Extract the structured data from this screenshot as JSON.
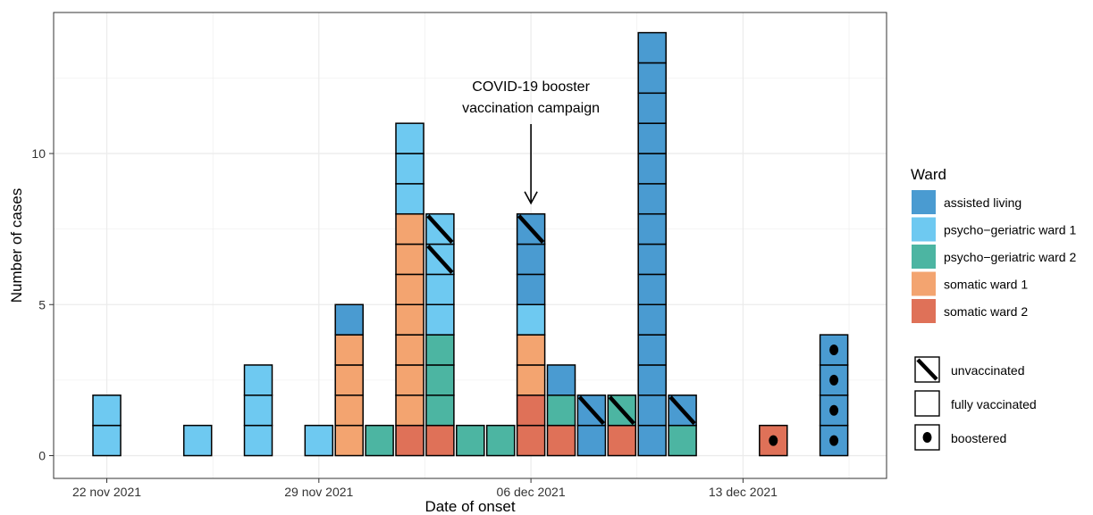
{
  "chart_data": {
    "type": "bar",
    "stacked": true,
    "title": "",
    "xlabel": "Date of onset",
    "ylabel": "Number of cases",
    "x_tick_labels": [
      {
        "date": "2021-11-22",
        "label": "22 nov 2021"
      },
      {
        "date": "2021-11-29",
        "label": "29 nov 2021"
      },
      {
        "date": "2021-12-06",
        "label": "06 dec 2021"
      },
      {
        "date": "2021-12-13",
        "label": "13 dec 2021"
      }
    ],
    "xlim": [
      "2021-11-20",
      "2021-12-18"
    ],
    "y_ticks": [
      0,
      5,
      10
    ],
    "ylim": [
      0,
      14.5
    ],
    "grid": true,
    "legend_position": "right",
    "legend_title": "Ward",
    "wards": [
      {
        "key": "assisted",
        "label": "assisted living",
        "color": "#4a9bd1"
      },
      {
        "key": "pg1",
        "label": "psycho−geriatric ward 1",
        "color": "#6ec9f1"
      },
      {
        "key": "pg2",
        "label": "psycho−geriatric ward 2",
        "color": "#4cb5a2"
      },
      {
        "key": "s1",
        "label": "somatic ward 1",
        "color": "#f3a470"
      },
      {
        "key": "s2",
        "label": "somatic ward 2",
        "color": "#df7158"
      }
    ],
    "status_legend": [
      {
        "key": "unvaccinated",
        "label": "unvaccinated"
      },
      {
        "key": "fully",
        "label": "fully vaccinated"
      },
      {
        "key": "boostered",
        "label": "boostered"
      }
    ],
    "annotation": {
      "lines": [
        "COVID-19 booster",
        "vaccination campaign"
      ],
      "date": "2021-12-06",
      "y": 8
    },
    "days": [
      {
        "date": "2021-11-22",
        "cases": [
          {
            "ward": "pg1",
            "status": "fully",
            "count": 2
          }
        ]
      },
      {
        "date": "2021-11-25",
        "cases": [
          {
            "ward": "pg1",
            "status": "fully",
            "count": 1
          }
        ]
      },
      {
        "date": "2021-11-27",
        "cases": [
          {
            "ward": "pg1",
            "status": "fully",
            "count": 3
          }
        ]
      },
      {
        "date": "2021-11-29",
        "cases": [
          {
            "ward": "pg1",
            "status": "fully",
            "count": 1
          }
        ]
      },
      {
        "date": "2021-11-30",
        "cases": [
          {
            "ward": "s1",
            "status": "fully",
            "count": 4
          },
          {
            "ward": "assisted",
            "status": "fully",
            "count": 1
          }
        ]
      },
      {
        "date": "2021-12-01",
        "cases": [
          {
            "ward": "pg2",
            "status": "fully",
            "count": 1
          }
        ]
      },
      {
        "date": "2021-12-02",
        "cases": [
          {
            "ward": "s2",
            "status": "fully",
            "count": 1
          },
          {
            "ward": "s1",
            "status": "fully",
            "count": 7
          },
          {
            "ward": "pg1",
            "status": "fully",
            "count": 3
          }
        ]
      },
      {
        "date": "2021-12-03",
        "cases": [
          {
            "ward": "s2",
            "status": "fully",
            "count": 1
          },
          {
            "ward": "pg2",
            "status": "fully",
            "count": 3
          },
          {
            "ward": "pg1",
            "status": "fully",
            "count": 2
          },
          {
            "ward": "pg1",
            "status": "unvaccinated",
            "count": 2
          }
        ]
      },
      {
        "date": "2021-12-04",
        "cases": [
          {
            "ward": "pg2",
            "status": "fully",
            "count": 1
          }
        ]
      },
      {
        "date": "2021-12-05",
        "cases": [
          {
            "ward": "pg2",
            "status": "fully",
            "count": 1
          }
        ]
      },
      {
        "date": "2021-12-06",
        "cases": [
          {
            "ward": "s2",
            "status": "fully",
            "count": 2
          },
          {
            "ward": "s1",
            "status": "fully",
            "count": 2
          },
          {
            "ward": "pg1",
            "status": "fully",
            "count": 1
          },
          {
            "ward": "assisted",
            "status": "fully",
            "count": 2
          },
          {
            "ward": "assisted",
            "status": "unvaccinated",
            "count": 1
          }
        ]
      },
      {
        "date": "2021-12-07",
        "cases": [
          {
            "ward": "s2",
            "status": "fully",
            "count": 1
          },
          {
            "ward": "pg2",
            "status": "fully",
            "count": 1
          },
          {
            "ward": "assisted",
            "status": "fully",
            "count": 1
          }
        ]
      },
      {
        "date": "2021-12-08",
        "cases": [
          {
            "ward": "assisted",
            "status": "fully",
            "count": 1
          },
          {
            "ward": "assisted",
            "status": "unvaccinated",
            "count": 1
          }
        ]
      },
      {
        "date": "2021-12-09",
        "cases": [
          {
            "ward": "s2",
            "status": "fully",
            "count": 1
          },
          {
            "ward": "pg2",
            "status": "unvaccinated",
            "count": 1
          }
        ]
      },
      {
        "date": "2021-12-10",
        "cases": [
          {
            "ward": "assisted",
            "status": "fully",
            "count": 14
          }
        ]
      },
      {
        "date": "2021-12-11",
        "cases": [
          {
            "ward": "pg2",
            "status": "fully",
            "count": 1
          },
          {
            "ward": "assisted",
            "status": "unvaccinated",
            "count": 1
          }
        ]
      },
      {
        "date": "2021-12-14",
        "cases": [
          {
            "ward": "s2",
            "status": "boostered",
            "count": 1
          }
        ]
      },
      {
        "date": "2021-12-16",
        "cases": [
          {
            "ward": "assisted",
            "status": "boostered",
            "count": 4
          }
        ]
      }
    ]
  }
}
